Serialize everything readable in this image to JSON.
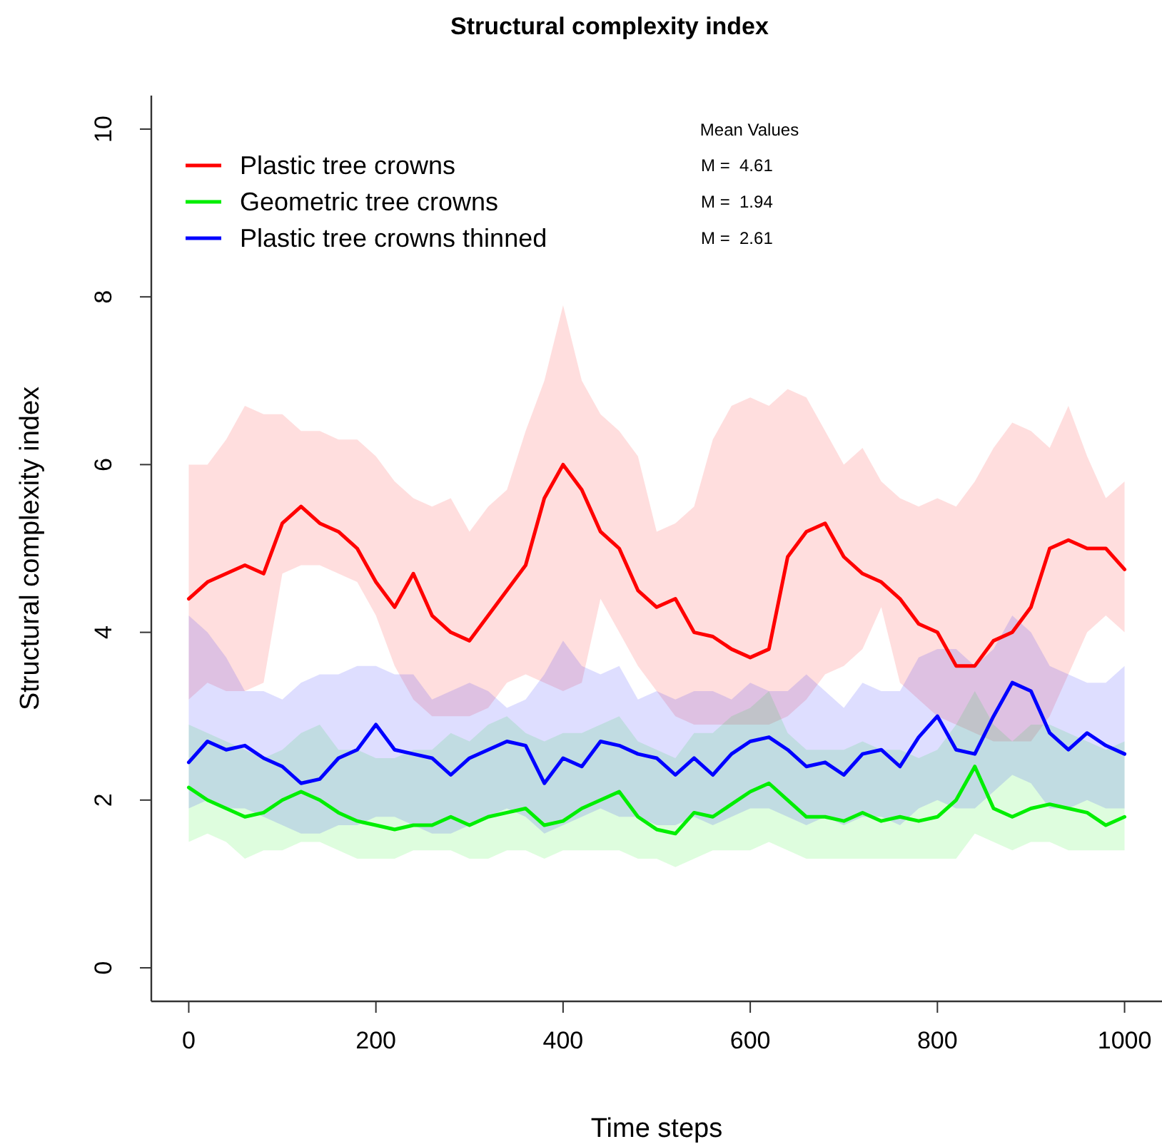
{
  "chart_data": {
    "type": "line",
    "title": "Structural complexity index",
    "xlabel": "Time steps",
    "ylabel": "Structural complexity index",
    "xlim": [
      -40,
      1040
    ],
    "ylim": [
      -0.4,
      10.4
    ],
    "xticks": [
      0,
      200,
      400,
      600,
      800,
      1000
    ],
    "yticks": [
      0,
      2,
      4,
      6,
      8,
      10
    ],
    "grid": false,
    "legend": "top left",
    "line_style": "solid",
    "marker": "none",
    "annotations": [
      "Mean Values",
      "M =  4.61",
      "M =  1.94",
      "M =  2.61"
    ],
    "x": [
      0,
      20,
      40,
      60,
      80,
      100,
      120,
      140,
      160,
      180,
      200,
      220,
      240,
      260,
      280,
      300,
      320,
      340,
      360,
      380,
      400,
      420,
      440,
      460,
      480,
      500,
      520,
      540,
      560,
      580,
      600,
      620,
      640,
      660,
      680,
      700,
      720,
      740,
      760,
      780,
      800,
      820,
      840,
      860,
      880,
      900,
      920,
      940,
      960,
      980,
      1000
    ],
    "series": [
      {
        "name": "Plastic tree crowns",
        "color": "#ff0000",
        "values": [
          4.4,
          4.6,
          4.7,
          4.8,
          4.7,
          5.3,
          5.5,
          5.3,
          5.2,
          5.0,
          4.6,
          4.3,
          4.7,
          4.2,
          4.0,
          3.9,
          4.2,
          4.5,
          4.8,
          5.6,
          6.0,
          5.7,
          5.2,
          5.0,
          4.5,
          4.3,
          4.4,
          4.0,
          3.95,
          3.8,
          3.7,
          3.8,
          4.9,
          5.2,
          5.3,
          4.9,
          4.7,
          4.6,
          4.4,
          4.1,
          4.0,
          3.6,
          3.6,
          3.9,
          4.0,
          4.3,
          5.0,
          5.1,
          5.0,
          5.0,
          4.75
        ],
        "lower": [
          3.2,
          3.4,
          3.3,
          3.3,
          3.4,
          4.7,
          4.8,
          4.8,
          4.7,
          4.6,
          4.2,
          3.6,
          3.2,
          3.0,
          3.0,
          3.0,
          3.1,
          3.4,
          3.5,
          3.4,
          3.3,
          3.4,
          4.4,
          4.0,
          3.6,
          3.3,
          3.0,
          2.9,
          2.9,
          2.9,
          2.9,
          2.9,
          3.0,
          3.2,
          3.5,
          3.6,
          3.8,
          4.3,
          3.4,
          3.2,
          3.0,
          2.9,
          2.8,
          2.7,
          2.7,
          2.7,
          3.0,
          3.5,
          4.0,
          4.2,
          4.0
        ],
        "upper": [
          6.0,
          6.0,
          6.3,
          6.7,
          6.6,
          6.6,
          6.4,
          6.4,
          6.3,
          6.3,
          6.1,
          5.8,
          5.6,
          5.5,
          5.6,
          5.2,
          5.5,
          5.7,
          6.4,
          7.0,
          7.9,
          7.0,
          6.6,
          6.4,
          6.1,
          5.2,
          5.3,
          5.5,
          6.3,
          6.7,
          6.8,
          6.7,
          6.9,
          6.8,
          6.4,
          6.0,
          6.2,
          5.8,
          5.6,
          5.5,
          5.6,
          5.5,
          5.8,
          6.2,
          6.5,
          6.4,
          6.2,
          6.7,
          6.1,
          5.6,
          5.8
        ]
      },
      {
        "name": "Geometric tree crowns",
        "color": "#00ee00",
        "values": [
          2.15,
          2.0,
          1.9,
          1.8,
          1.85,
          2.0,
          2.1,
          2.0,
          1.85,
          1.75,
          1.7,
          1.65,
          1.7,
          1.7,
          1.8,
          1.7,
          1.8,
          1.85,
          1.9,
          1.7,
          1.75,
          1.9,
          2.0,
          2.1,
          1.8,
          1.65,
          1.6,
          1.85,
          1.8,
          1.95,
          2.1,
          2.2,
          2.0,
          1.8,
          1.8,
          1.75,
          1.85,
          1.75,
          1.8,
          1.75,
          1.8,
          2.0,
          2.4,
          1.9,
          1.8,
          1.9,
          1.95,
          1.9,
          1.85,
          1.7,
          1.8
        ],
        "lower": [
          1.5,
          1.6,
          1.5,
          1.3,
          1.4,
          1.4,
          1.5,
          1.5,
          1.4,
          1.3,
          1.3,
          1.3,
          1.4,
          1.4,
          1.4,
          1.3,
          1.3,
          1.4,
          1.4,
          1.3,
          1.4,
          1.4,
          1.4,
          1.4,
          1.3,
          1.3,
          1.2,
          1.3,
          1.4,
          1.4,
          1.4,
          1.5,
          1.4,
          1.3,
          1.3,
          1.3,
          1.3,
          1.3,
          1.3,
          1.3,
          1.3,
          1.3,
          1.6,
          1.5,
          1.4,
          1.5,
          1.5,
          1.4,
          1.4,
          1.4,
          1.4
        ],
        "upper": [
          2.9,
          2.8,
          2.7,
          2.6,
          2.5,
          2.6,
          2.8,
          2.9,
          2.6,
          2.6,
          2.5,
          2.5,
          2.6,
          2.6,
          2.8,
          2.7,
          2.9,
          3.0,
          2.8,
          2.7,
          2.8,
          2.8,
          2.9,
          3.0,
          2.7,
          2.6,
          2.5,
          2.8,
          2.8,
          3.0,
          3.1,
          3.3,
          2.8,
          2.6,
          2.6,
          2.6,
          2.7,
          2.6,
          2.6,
          2.5,
          2.6,
          2.9,
          3.3,
          2.9,
          2.7,
          2.9,
          2.9,
          2.8,
          2.7,
          2.6,
          2.7
        ]
      },
      {
        "name": "Plastic tree crowns thinned",
        "color": "#0000ff",
        "values": [
          2.45,
          2.7,
          2.6,
          2.65,
          2.5,
          2.4,
          2.2,
          2.25,
          2.5,
          2.6,
          2.9,
          2.6,
          2.55,
          2.5,
          2.3,
          2.5,
          2.6,
          2.7,
          2.65,
          2.2,
          2.5,
          2.4,
          2.7,
          2.65,
          2.55,
          2.5,
          2.3,
          2.5,
          2.3,
          2.55,
          2.7,
          2.75,
          2.6,
          2.4,
          2.45,
          2.3,
          2.55,
          2.6,
          2.4,
          2.75,
          3.0,
          2.6,
          2.55,
          3.0,
          3.4,
          3.3,
          2.8,
          2.6,
          2.8,
          2.65,
          2.55
        ],
        "lower": [
          1.9,
          2.0,
          1.9,
          1.9,
          1.8,
          1.7,
          1.6,
          1.6,
          1.7,
          1.7,
          1.8,
          1.8,
          1.7,
          1.6,
          1.6,
          1.7,
          1.8,
          1.9,
          1.8,
          1.6,
          1.7,
          1.8,
          1.9,
          1.8,
          1.8,
          1.7,
          1.7,
          1.8,
          1.7,
          1.8,
          1.9,
          1.9,
          1.8,
          1.7,
          1.8,
          1.7,
          1.8,
          1.8,
          1.7,
          1.9,
          2.0,
          1.9,
          1.9,
          2.1,
          2.3,
          2.2,
          1.9,
          1.9,
          2.0,
          1.9,
          1.9
        ],
        "upper": [
          4.2,
          4.0,
          3.7,
          3.3,
          3.3,
          3.2,
          3.4,
          3.5,
          3.5,
          3.6,
          3.6,
          3.5,
          3.5,
          3.2,
          3.3,
          3.4,
          3.3,
          3.1,
          3.2,
          3.5,
          3.9,
          3.6,
          3.5,
          3.6,
          3.2,
          3.3,
          3.2,
          3.3,
          3.3,
          3.2,
          3.4,
          3.3,
          3.3,
          3.5,
          3.3,
          3.1,
          3.4,
          3.3,
          3.3,
          3.7,
          3.8,
          3.8,
          3.6,
          3.8,
          4.2,
          4.0,
          3.6,
          3.5,
          3.4,
          3.4,
          3.6
        ]
      }
    ]
  }
}
